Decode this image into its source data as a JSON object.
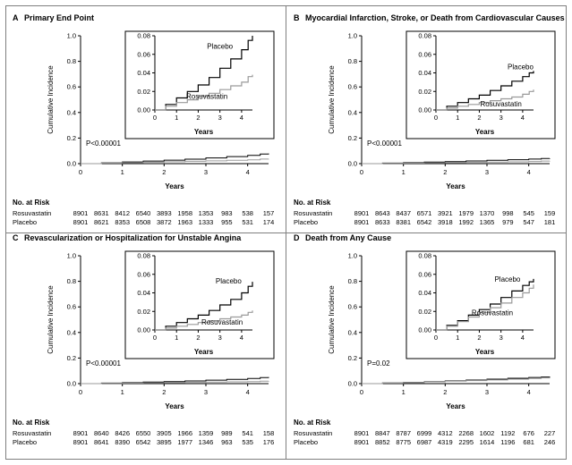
{
  "colors": {
    "placebo": "#000000",
    "rosuvastatin": "#9a9a9a",
    "frame": "#7f7f7f"
  },
  "risk_header": "No. at Risk",
  "chart_data": [
    {
      "type": "line",
      "panel_letter": "A",
      "title": "Primary End Point",
      "xlabel": "Years",
      "ylabel": "Cumulative Incidence",
      "xlim": [
        0,
        4.5
      ],
      "ylim": [
        0,
        1.0
      ],
      "xticks": [
        "0",
        "1",
        "2",
        "3",
        "4"
      ],
      "yticks": [
        "0.0",
        "0.2",
        "0.4",
        "0.6",
        "0.8",
        "1.0"
      ],
      "p_value": "P<0.00001",
      "inset": {
        "xlim": [
          0,
          4.5
        ],
        "ylim": [
          0,
          0.08
        ],
        "xticks": [
          "0",
          "1",
          "2",
          "3",
          "4"
        ],
        "yticks": [
          "0.00",
          "0.02",
          "0.04",
          "0.06",
          "0.08"
        ],
        "xlabel": "Years"
      },
      "series": [
        {
          "name": "Placebo",
          "x": [
            0,
            0.5,
            1,
            1.5,
            2,
            2.5,
            3,
            3.5,
            4,
            4.3,
            4.5
          ],
          "y": [
            0,
            0.006,
            0.013,
            0.02,
            0.027,
            0.035,
            0.045,
            0.055,
            0.065,
            0.075,
            0.08
          ]
        },
        {
          "name": "Rosuvastatin",
          "x": [
            0,
            0.5,
            1,
            1.5,
            2,
            2.5,
            3,
            3.5,
            4,
            4.3,
            4.5
          ],
          "y": [
            0,
            0.004,
            0.008,
            0.011,
            0.015,
            0.018,
            0.022,
            0.026,
            0.03,
            0.036,
            0.038
          ]
        }
      ],
      "inset_labels": {
        "placebo_at": [
          3.0,
          0.066
        ],
        "rosuvastatin_at": [
          2.4,
          0.012
        ]
      },
      "risk": [
        {
          "label": "Rosuvastatin",
          "values": [
            "8901",
            "8631",
            "8412",
            "6540",
            "3893",
            "1958",
            "1353",
            "983",
            "538",
            "157"
          ]
        },
        {
          "label": "Placebo",
          "values": [
            "8901",
            "8621",
            "8353",
            "6508",
            "3872",
            "1963",
            "1333",
            "955",
            "531",
            "174"
          ]
        }
      ]
    },
    {
      "type": "line",
      "panel_letter": "B",
      "title": "Myocardial Infarction, Stroke, or Death from Cardiovascular Causes",
      "xlabel": "Years",
      "ylabel": "Cumulative Incidence",
      "xlim": [
        0,
        4.5
      ],
      "ylim": [
        0,
        1.0
      ],
      "xticks": [
        "0",
        "1",
        "2",
        "3",
        "4"
      ],
      "yticks": [
        "0.0",
        "0.2",
        "0.4",
        "0.6",
        "0.8",
        "1.0"
      ],
      "p_value": "P<0.00001",
      "inset": {
        "xlim": [
          0,
          4.5
        ],
        "ylim": [
          0,
          0.08
        ],
        "xticks": [
          "0",
          "1",
          "2",
          "3",
          "4"
        ],
        "yticks": [
          "0.00",
          "0.02",
          "0.04",
          "0.06",
          "0.08"
        ],
        "xlabel": "Years"
      },
      "series": [
        {
          "name": "Placebo",
          "x": [
            0,
            0.5,
            1,
            1.5,
            2,
            2.5,
            3,
            3.5,
            4,
            4.3,
            4.5
          ],
          "y": [
            0,
            0.004,
            0.008,
            0.012,
            0.016,
            0.021,
            0.026,
            0.031,
            0.036,
            0.04,
            0.042
          ]
        },
        {
          "name": "Rosuvastatin",
          "x": [
            0,
            0.5,
            1,
            1.5,
            2,
            2.5,
            3,
            3.5,
            4,
            4.3,
            4.5
          ],
          "y": [
            0,
            0.002,
            0.004,
            0.006,
            0.008,
            0.01,
            0.012,
            0.014,
            0.017,
            0.02,
            0.022
          ]
        }
      ],
      "inset_labels": {
        "placebo_at": [
          3.9,
          0.044
        ],
        "rosuvastatin_at": [
          3.0,
          0.004
        ]
      },
      "risk": [
        {
          "label": "Rosuvastatin",
          "values": [
            "8901",
            "8643",
            "8437",
            "6571",
            "3921",
            "1979",
            "1370",
            "998",
            "545",
            "159"
          ]
        },
        {
          "label": "Placebo",
          "values": [
            "8901",
            "8633",
            "8381",
            "6542",
            "3918",
            "1992",
            "1365",
            "979",
            "547",
            "181"
          ]
        }
      ]
    },
    {
      "type": "line",
      "panel_letter": "C",
      "title": "Revascularization or Hospitalization for Unstable Angina",
      "xlabel": "Years",
      "ylabel": "Cumulative Incidence",
      "xlim": [
        0,
        4.5
      ],
      "ylim": [
        0,
        1.0
      ],
      "xticks": [
        "0",
        "1",
        "2",
        "3",
        "4"
      ],
      "yticks": [
        "0.0",
        "0.2",
        "0.4",
        "0.6",
        "0.8",
        "1.0"
      ],
      "p_value": "P<0.00001",
      "inset": {
        "xlim": [
          0,
          4.5
        ],
        "ylim": [
          0,
          0.08
        ],
        "xticks": [
          "0",
          "1",
          "2",
          "3",
          "4"
        ],
        "yticks": [
          "0.00",
          "0.02",
          "0.04",
          "0.06",
          "0.08"
        ],
        "xlabel": "Years"
      },
      "series": [
        {
          "name": "Placebo",
          "x": [
            0,
            0.5,
            1,
            1.5,
            2,
            2.5,
            3,
            3.5,
            4,
            4.3,
            4.5
          ],
          "y": [
            0,
            0.004,
            0.008,
            0.012,
            0.016,
            0.021,
            0.027,
            0.033,
            0.04,
            0.047,
            0.052
          ]
        },
        {
          "name": "Rosuvastatin",
          "x": [
            0,
            0.5,
            1,
            1.5,
            2,
            2.5,
            3,
            3.5,
            4,
            4.3,
            4.5
          ],
          "y": [
            0,
            0.002,
            0.004,
            0.006,
            0.008,
            0.01,
            0.012,
            0.014,
            0.016,
            0.019,
            0.021
          ]
        }
      ],
      "inset_labels": {
        "placebo_at": [
          3.4,
          0.05
        ],
        "rosuvastatin_at": [
          3.1,
          0.006
        ]
      },
      "risk": [
        {
          "label": "Rosuvastatin",
          "values": [
            "8901",
            "8640",
            "8426",
            "6550",
            "3905",
            "1966",
            "1359",
            "989",
            "541",
            "158"
          ]
        },
        {
          "label": "Placebo",
          "values": [
            "8901",
            "8641",
            "8390",
            "6542",
            "3895",
            "1977",
            "1346",
            "963",
            "535",
            "176"
          ]
        }
      ]
    },
    {
      "type": "line",
      "panel_letter": "D",
      "title": "Death from Any Cause",
      "xlabel": "Years",
      "ylabel": "Cumulative Incidence",
      "xlim": [
        0,
        4.5
      ],
      "ylim": [
        0,
        1.0
      ],
      "xticks": [
        "0",
        "1",
        "2",
        "3",
        "4"
      ],
      "yticks": [
        "0.0",
        "0.2",
        "0.4",
        "0.6",
        "0.8",
        "1.0"
      ],
      "p_value": "P=0.02",
      "inset": {
        "xlim": [
          0,
          4.5
        ],
        "ylim": [
          0,
          0.08
        ],
        "xticks": [
          "0",
          "1",
          "2",
          "3",
          "4"
        ],
        "yticks": [
          "0.00",
          "0.02",
          "0.04",
          "0.06",
          "0.08"
        ],
        "xlabel": "Years"
      },
      "series": [
        {
          "name": "Placebo",
          "x": [
            0,
            0.5,
            1,
            1.5,
            2,
            2.5,
            3,
            3.5,
            4,
            4.3,
            4.5
          ],
          "y": [
            0,
            0.005,
            0.01,
            0.016,
            0.022,
            0.028,
            0.035,
            0.042,
            0.048,
            0.052,
            0.055
          ]
        },
        {
          "name": "Rosuvastatin",
          "x": [
            0,
            0.5,
            1,
            1.5,
            2,
            2.5,
            3,
            3.5,
            4,
            4.3,
            4.5
          ],
          "y": [
            0,
            0.004,
            0.009,
            0.014,
            0.019,
            0.024,
            0.029,
            0.035,
            0.04,
            0.045,
            0.049
          ]
        }
      ],
      "inset_labels": {
        "placebo_at": [
          3.3,
          0.052
        ],
        "rosuvastatin_at": [
          2.6,
          0.016
        ]
      },
      "risk": [
        {
          "label": "Rosuvastatin",
          "values": [
            "8901",
            "8847",
            "8787",
            "6999",
            "4312",
            "2268",
            "1602",
            "1192",
            "676",
            "227"
          ]
        },
        {
          "label": "Placebo",
          "values": [
            "8901",
            "8852",
            "8775",
            "6987",
            "4319",
            "2295",
            "1614",
            "1196",
            "681",
            "246"
          ]
        }
      ]
    }
  ]
}
